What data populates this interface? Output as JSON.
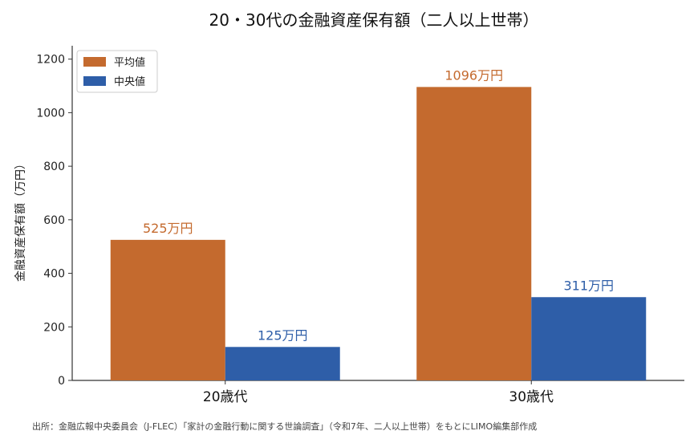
{
  "chart_data": {
    "type": "bar",
    "title": "20・30代の金融資産保有額（二人以上世帯）",
    "ylabel": "金融資産保有額（万円）",
    "xlabel": "",
    "categories": [
      "20歳代",
      "30歳代"
    ],
    "series": [
      {
        "name": "平均値",
        "color": "#C46A2E",
        "values": [
          525,
          1096
        ],
        "labels": [
          "525万円",
          "1096万円"
        ]
      },
      {
        "name": "中央値",
        "color": "#2E5EA8",
        "values": [
          125,
          311
        ],
        "labels": [
          "125万円",
          "311万円"
        ]
      }
    ],
    "ylim": [
      0,
      1250
    ],
    "yticks": [
      0,
      200,
      400,
      600,
      800,
      1000,
      1200
    ],
    "grid": false,
    "legend": "top-left",
    "source": "出所：金融広報中央委員会（J-FLEC）「家計の金融行動に関する世論調査」（令和7年、二人以上世帯）をもとにLIMO編集部作成"
  }
}
